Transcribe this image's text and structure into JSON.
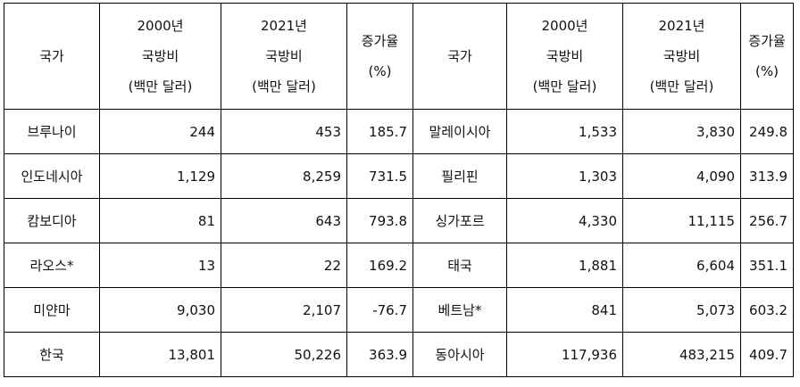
{
  "header": {
    "country": "국가",
    "spend2000": [
      "2000년",
      "국방비",
      "(백만 달러)"
    ],
    "spend2021": [
      "2021년",
      "국방비",
      "(백만 달러)"
    ],
    "growth": [
      "증가율",
      "(%)"
    ]
  },
  "rows": [
    {
      "left": {
        "country": "브루나이",
        "y2000": "244",
        "y2021": "453",
        "growth": "185.7"
      },
      "right": {
        "country": "말레이시아",
        "y2000": "1,533",
        "y2021": "3,830",
        "growth": "249.8"
      }
    },
    {
      "left": {
        "country": "인도네시아",
        "y2000": "1,129",
        "y2021": "8,259",
        "growth": "731.5"
      },
      "right": {
        "country": "필리핀",
        "y2000": "1,303",
        "y2021": "4,090",
        "growth": "313.9"
      }
    },
    {
      "left": {
        "country": "캄보디아",
        "y2000": "81",
        "y2021": "643",
        "growth": "793.8"
      },
      "right": {
        "country": "싱가포르",
        "y2000": "4,330",
        "y2021": "11,115",
        "growth": "256.7"
      }
    },
    {
      "left": {
        "country": "라오스*",
        "y2000": "13",
        "y2021": "22",
        "growth": "169.2"
      },
      "right": {
        "country": "태국",
        "y2000": "1,881",
        "y2021": "6,604",
        "growth": "351.1"
      }
    },
    {
      "left": {
        "country": "미얀마",
        "y2000": "9,030",
        "y2021": "2,107",
        "growth": "-76.7"
      },
      "right": {
        "country": "베트남*",
        "y2000": "841",
        "y2021": "5,073",
        "growth": "603.2"
      }
    },
    {
      "left": {
        "country": "한국",
        "y2000": "13,801",
        "y2021": "50,226",
        "growth": "363.9"
      },
      "right": {
        "country": "동아시아",
        "y2000": "117,936",
        "y2021": "483,215",
        "growth": "409.7"
      }
    }
  ]
}
